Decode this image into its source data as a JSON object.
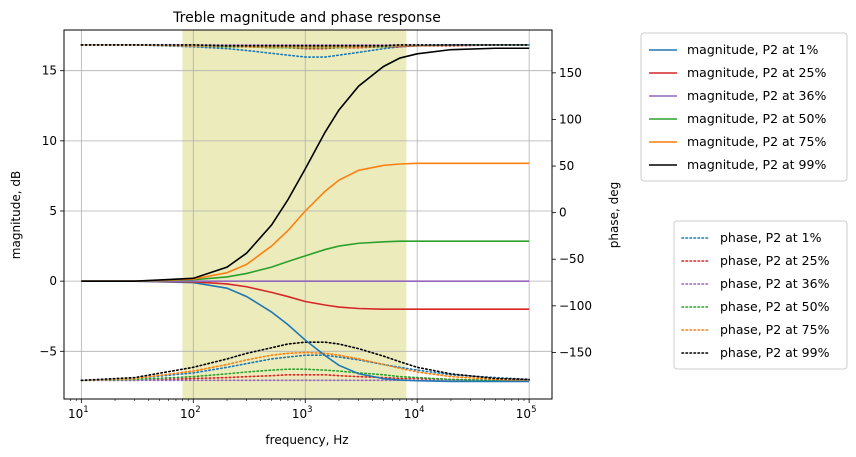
{
  "chart_data": {
    "type": "line",
    "title": "Treble magnitude and phase response",
    "xlabel": "frequency, Hz",
    "ylabel_left": "magnitude, dB",
    "ylabel_right": "phase, deg",
    "xscale": "log",
    "xlim": [
      7,
      160000
    ],
    "ylim_left": [
      -8.4,
      17.9
    ],
    "ylim_right": [
      -200,
      196
    ],
    "grid": true,
    "x_ticks": [
      {
        "value": 10,
        "base": "10",
        "exp": "1"
      },
      {
        "value": 100,
        "base": "10",
        "exp": "2"
      },
      {
        "value": 1000,
        "base": "10",
        "exp": "3"
      },
      {
        "value": 10000,
        "base": "10",
        "exp": "4"
      },
      {
        "value": 100000,
        "base": "10",
        "exp": "5"
      }
    ],
    "y_left_ticks": [
      "−5",
      "0",
      "5",
      "10",
      "15"
    ],
    "y_left_tick_values": [
      -5,
      0,
      5,
      10,
      15
    ],
    "y_right_ticks": [
      "−150",
      "−100",
      "−50",
      "0",
      "50",
      "100",
      "150"
    ],
    "y_right_tick_values": [
      -150,
      -100,
      -50,
      0,
      50,
      100,
      150
    ],
    "shaded_band": {
      "x_start": 80,
      "x_end": 8000,
      "color": "#bcbd22",
      "opacity": 0.3
    },
    "x": [
      10,
      30,
      100,
      200,
      300,
      500,
      700,
      1000,
      1500,
      2000,
      3000,
      5000,
      7000,
      10000,
      20000,
      50000,
      100000
    ],
    "magnitude_series": [
      {
        "name": "magnitude, P2 at 1%",
        "color": "#1f77b4",
        "values": [
          0,
          0,
          -0.1,
          -0.5,
          -1.1,
          -2.2,
          -3.1,
          -4.2,
          -5.3,
          -6.0,
          -6.6,
          -6.95,
          -7.05,
          -7.1,
          -7.15,
          -7.15,
          -7.15
        ]
      },
      {
        "name": "magnitude, P2 at 25%",
        "color": "#d62728",
        "values": [
          0,
          0,
          -0.05,
          -0.2,
          -0.4,
          -0.8,
          -1.1,
          -1.45,
          -1.7,
          -1.85,
          -1.95,
          -2.0,
          -2.0,
          -2.0,
          -2.0,
          -2.0,
          -2.0
        ]
      },
      {
        "name": "magnitude, P2 at 36%",
        "color": "#9467bd",
        "values": [
          0,
          0,
          0,
          0,
          0,
          0,
          0,
          0,
          0,
          0,
          0,
          0,
          0,
          0,
          0,
          0,
          0
        ]
      },
      {
        "name": "magnitude, P2 at 50%",
        "color": "#2ca02c",
        "values": [
          0,
          0,
          0.1,
          0.3,
          0.55,
          1.0,
          1.4,
          1.8,
          2.25,
          2.5,
          2.7,
          2.8,
          2.85,
          2.85,
          2.85,
          2.85,
          2.85
        ]
      },
      {
        "name": "magnitude, P2 at 75%",
        "color": "#ff7f0e",
        "values": [
          0,
          0,
          0.15,
          0.6,
          1.2,
          2.5,
          3.6,
          5.0,
          6.4,
          7.2,
          7.9,
          8.25,
          8.35,
          8.4,
          8.4,
          8.4,
          8.4
        ]
      },
      {
        "name": "magnitude, P2 at 99%",
        "color": "#000000",
        "values": [
          0,
          0,
          0.2,
          1.0,
          2.0,
          4.0,
          5.8,
          8.0,
          10.6,
          12.2,
          13.9,
          15.3,
          15.9,
          16.2,
          16.5,
          16.6,
          16.6
        ]
      }
    ],
    "phase_series": [
      {
        "name": "phase, P2 at 1%",
        "color": "#1f77b4",
        "values": [
          -180,
          -178,
          -172,
          -166,
          -162,
          -157,
          -155,
          -153,
          -153,
          -155,
          -158,
          -163,
          -166,
          -169,
          -174,
          -177,
          -179
        ]
      },
      {
        "name": "phase, P2 at 25%",
        "color": "#d62728",
        "values": [
          -180,
          -180,
          -178,
          -177,
          -176,
          -175,
          -174,
          -174,
          -174,
          -175,
          -176,
          -177,
          -178,
          -178,
          -179,
          -180,
          -180
        ]
      },
      {
        "name": "phase, P2 at 36%",
        "color": "#9467bd",
        "values": [
          -180,
          -180,
          -180,
          -180,
          -180,
          -180,
          -180,
          -180,
          -180,
          -180,
          -180,
          -180,
          -180,
          -180,
          -180,
          -180,
          -180
        ]
      },
      {
        "name": "phase, P2 at 50%",
        "color": "#2ca02c",
        "values": [
          -180,
          -179,
          -176,
          -173,
          -171,
          -169,
          -168,
          -168,
          -169,
          -170,
          -172,
          -174,
          -176,
          -177,
          -179,
          -180,
          -180
        ]
      },
      {
        "name": "phase, P2 at 75%",
        "color": "#ff7f0e",
        "values": [
          -180,
          -178,
          -170,
          -163,
          -158,
          -153,
          -151,
          -150,
          -151,
          -153,
          -157,
          -163,
          -167,
          -171,
          -176,
          -179,
          -180
        ]
      },
      {
        "name": "phase, P2 at 99%",
        "color": "#000000",
        "values": [
          -180,
          -177,
          -166,
          -157,
          -151,
          -145,
          -141,
          -139,
          -139,
          -141,
          -146,
          -154,
          -160,
          -166,
          -173,
          -178,
          -179
        ]
      }
    ],
    "phase_at_top": [
      {
        "name": "phase, P2 at 1%",
        "color": "#1f77b4",
        "values": [
          180,
          180,
          178,
          176,
          174,
          171,
          169,
          167,
          167,
          169,
          172,
          176,
          178,
          179,
          180,
          180,
          180
        ]
      },
      {
        "name": "phase, P2 at 25%",
        "color": "#d62728",
        "values": [
          180,
          180,
          179,
          178,
          178,
          177,
          177,
          176,
          176,
          177,
          177,
          178,
          178,
          179,
          179,
          180,
          180
        ]
      },
      {
        "name": "phase, P2 at 36%",
        "color": "#9467bd",
        "values": [
          180,
          180,
          180,
          180,
          180,
          180,
          180,
          180,
          180,
          180,
          180,
          180,
          180,
          180,
          180,
          180,
          180
        ]
      },
      {
        "name": "phase, P2 at 50%",
        "color": "#2ca02c",
        "values": [
          180,
          180,
          179,
          178,
          178,
          177,
          177,
          177,
          177,
          177,
          178,
          178,
          179,
          179,
          180,
          180,
          180
        ]
      },
      {
        "name": "phase, P2 at 75%",
        "color": "#ff7f0e",
        "values": [
          180,
          180,
          179,
          179,
          178,
          178,
          178,
          178,
          178,
          178,
          178,
          179,
          179,
          179,
          180,
          180,
          180
        ]
      },
      {
        "name": "phase, P2 at 99%",
        "color": "#000000",
        "values": [
          180,
          180,
          180,
          179,
          179,
          179,
          179,
          179,
          179,
          179,
          179,
          179,
          180,
          180,
          180,
          180,
          180
        ]
      }
    ],
    "legend_magnitude_position": "top-right outside",
    "legend_phase_position": "middle-right outside"
  }
}
